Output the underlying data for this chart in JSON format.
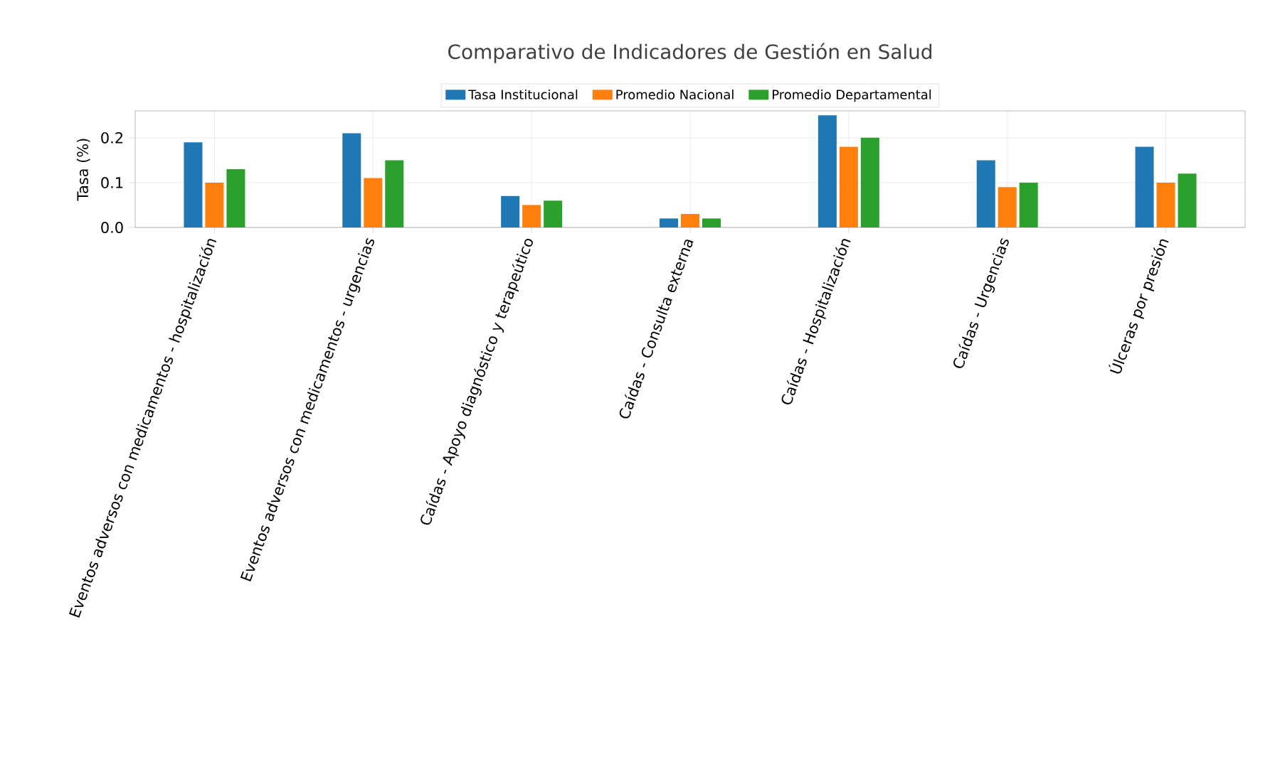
{
  "chart_data": {
    "type": "bar",
    "title": "Comparativo de Indicadores de Gestión en Salud",
    "ylabel": "Tasa (%)",
    "categories": [
      "Eventos adversos con medicamentos - hospitalización",
      "Eventos adversos con medicamentos - urgencias",
      "Caídas - Apoyo diagnóstico y terapeútico",
      "Caídas - Consulta externa",
      "Caídas - Hospitalización",
      "Caídas - Urgencias",
      "Úlceras por presión"
    ],
    "series": [
      {
        "name": "Tasa Institucional",
        "color": "#1f77b4",
        "values": [
          0.19,
          0.21,
          0.07,
          0.02,
          0.25,
          0.15,
          0.18
        ]
      },
      {
        "name": "Promedio Nacional",
        "color": "#ff7f0e",
        "values": [
          0.1,
          0.11,
          0.05,
          0.03,
          0.18,
          0.09,
          0.1
        ]
      },
      {
        "name": "Promedio Departamental",
        "color": "#2ca02c",
        "values": [
          0.13,
          0.15,
          0.06,
          0.02,
          0.2,
          0.1,
          0.12
        ]
      }
    ],
    "ylim": [
      0,
      0.26
    ],
    "yticks": [
      {
        "value": 0,
        "label": "0.0"
      },
      {
        "value": 0.1,
        "label": "0.1"
      },
      {
        "value": 0.2,
        "label": "0.2"
      }
    ],
    "grid": true,
    "legend": "top"
  }
}
